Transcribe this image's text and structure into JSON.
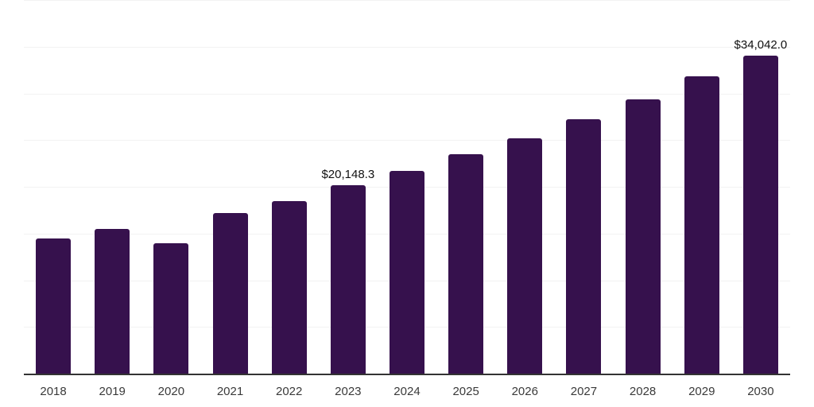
{
  "chart_data": {
    "type": "bar",
    "title": "",
    "xlabel": "",
    "ylabel": "",
    "categories": [
      "2018",
      "2019",
      "2020",
      "2021",
      "2022",
      "2023",
      "2024",
      "2025",
      "2026",
      "2027",
      "2028",
      "2029",
      "2030"
    ],
    "values": [
      14475,
      15465,
      13960,
      17230,
      18490,
      20148.3,
      21700,
      23460,
      25220,
      27210,
      29400,
      31840,
      34042.0
    ],
    "point_labels": [
      "",
      "",
      "",
      "",
      "",
      "$20,148.3",
      "",
      "",
      "",
      "",
      "",
      "",
      ""
    ],
    "ylim": [
      0,
      40000
    ],
    "grid_step": 5000,
    "grid": true,
    "legend": "none",
    "note_last_label": "$34,042.0"
  },
  "colors": {
    "bar": "#36114d",
    "axis": "#333333",
    "grid": "#f2f2f2",
    "value_label": "#111111",
    "tick_label": "#3a3a3a",
    "background": "#ffffff"
  }
}
